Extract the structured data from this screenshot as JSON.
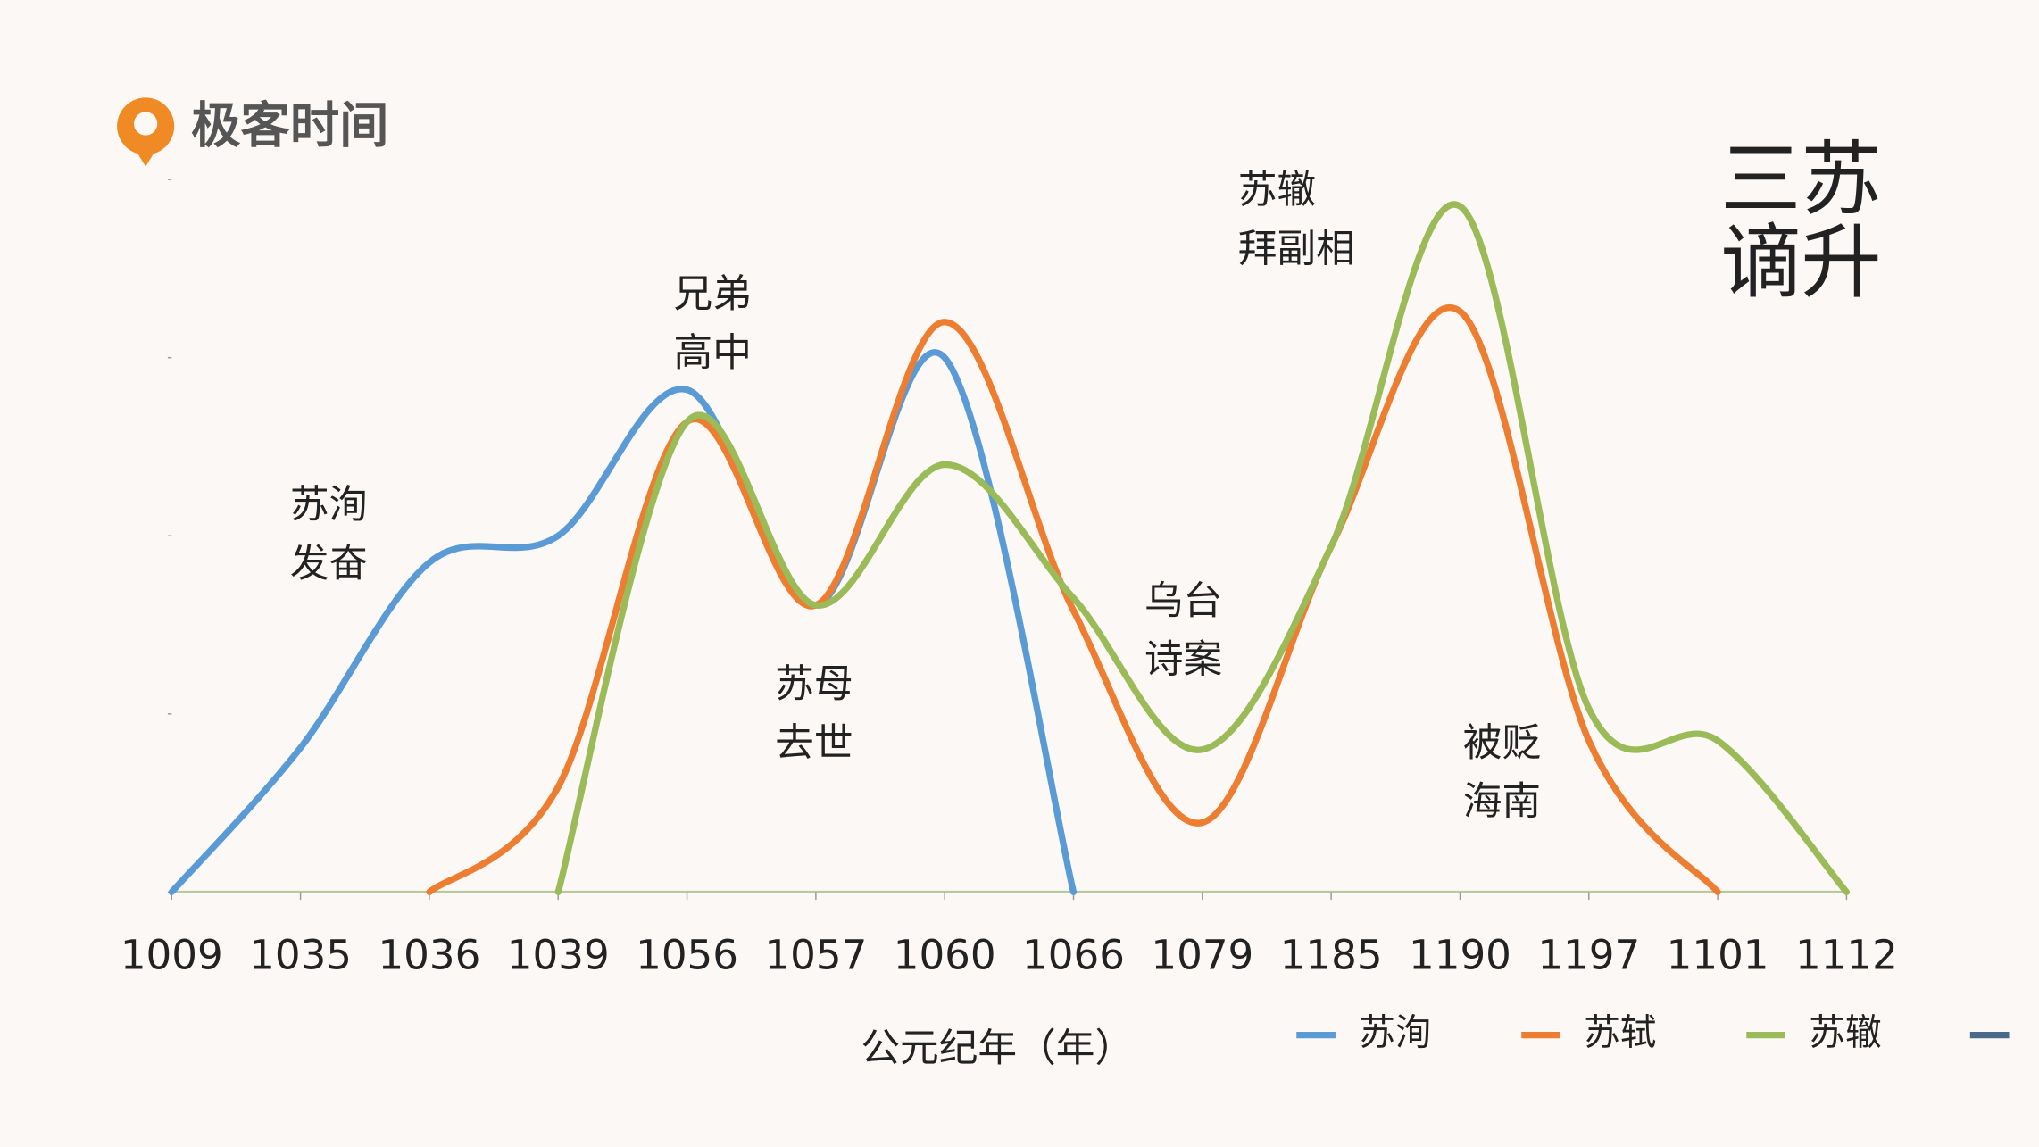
{
  "brand": "极客时间",
  "chart_data": {
    "type": "line",
    "title": [
      "三苏",
      "谪升"
    ],
    "x_label": "公元纪年（年）",
    "categories": [
      "1009",
      "1035",
      "1036",
      "1039",
      "1056",
      "1057",
      "1060",
      "1066",
      "1079",
      "1185",
      "1190",
      "1197",
      "1101",
      "1112"
    ],
    "ylim": [
      0,
      4
    ],
    "yticks": [
      0,
      1,
      2,
      3,
      4
    ],
    "series": [
      {
        "name": "苏洵",
        "color": "#5b9bd5",
        "values": [
          0,
          0.81,
          1.85,
          2.0,
          2.82,
          1.61,
          3.0,
          0,
          null,
          null,
          null,
          null,
          null,
          null
        ]
      },
      {
        "name": "苏轼",
        "color": "#ed7d31",
        "values": [
          null,
          null,
          0,
          0.59,
          2.64,
          1.61,
          3.2,
          1.58,
          0.39,
          1.94,
          3.26,
          0.85,
          0,
          null
        ]
      },
      {
        "name": "苏辙",
        "color": "#9bbb59",
        "values": [
          null,
          null,
          null,
          0,
          2.64,
          1.61,
          2.4,
          1.65,
          0.8,
          1.94,
          3.85,
          1.03,
          0.85,
          0
        ]
      }
    ],
    "annotations": [
      [
        "苏洵",
        "发奋"
      ],
      [
        "兄弟",
        "高中"
      ],
      [
        "苏母",
        "去世"
      ],
      [
        "乌台",
        "诗案"
      ],
      [
        "苏辙",
        "拜副相"
      ],
      [
        "被贬",
        "海南"
      ]
    ]
  }
}
